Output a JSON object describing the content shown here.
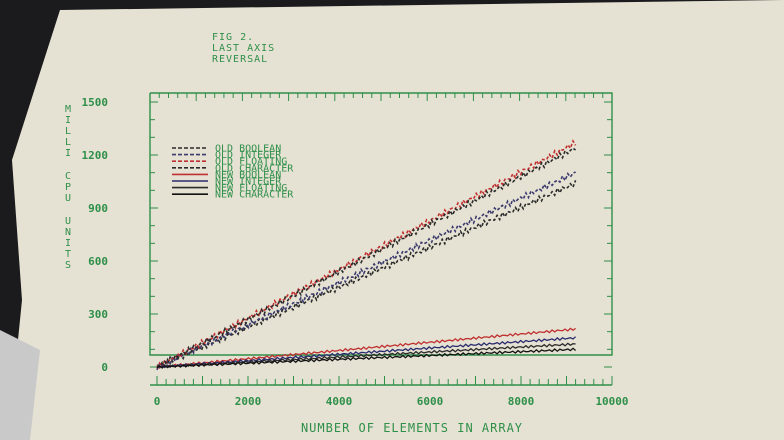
{
  "figure": {
    "title_lines": [
      "FIG 2.",
      "LAST AXIS",
      "REVERSAL"
    ]
  },
  "chart_data": {
    "type": "line",
    "title": "FIG 2. LAST AXIS REVERSAL",
    "xlabel": "NUMBER OF ELEMENTS IN ARRAY",
    "ylabel_lines": [
      "MILLI",
      "CPU",
      "UNITS"
    ],
    "xlim": [
      0,
      10000
    ],
    "ylim": [
      0,
      1500
    ],
    "x_ticks": [
      "0",
      "2000",
      "4000",
      "6000",
      "8000",
      "10000"
    ],
    "y_ticks": [
      "0",
      "300",
      "600",
      "900",
      "1200",
      "1500"
    ],
    "legend_placement": "top-left",
    "series": [
      {
        "name": "OLD BOOLEAN",
        "style": "dashed",
        "color": "#2a2a2a",
        "x": [
          0,
          9200
        ],
        "y": [
          0,
          1040
        ]
      },
      {
        "name": "OLD INTEGER",
        "style": "dashed",
        "color": "#3a3a6e",
        "x": [
          0,
          9200
        ],
        "y": [
          0,
          1100
        ]
      },
      {
        "name": "OLD FLOATING",
        "style": "dashed",
        "color": "#c03030",
        "x": [
          0,
          9200
        ],
        "y": [
          0,
          1270
        ]
      },
      {
        "name": "OLD CHARACTER",
        "style": "dashed",
        "color": "#2a2a2a",
        "x": [
          0,
          9200
        ],
        "y": [
          0,
          1240
        ]
      },
      {
        "name": "NEW BOOLEAN",
        "style": "solid",
        "color": "#c03030",
        "x": [
          0,
          9200
        ],
        "y": [
          0,
          215
        ]
      },
      {
        "name": "NEW INTEGER",
        "style": "solid",
        "color": "#2a2a6e",
        "x": [
          0,
          9200
        ],
        "y": [
          0,
          165
        ]
      },
      {
        "name": "NEW FLOATING",
        "style": "solid",
        "color": "#2a2a2a",
        "x": [
          0,
          9200
        ],
        "y": [
          0,
          130
        ]
      },
      {
        "name": "NEW CHARACTER",
        "style": "solid",
        "color": "#111111",
        "x": [
          0,
          9200
        ],
        "y": [
          0,
          100
        ]
      }
    ]
  }
}
